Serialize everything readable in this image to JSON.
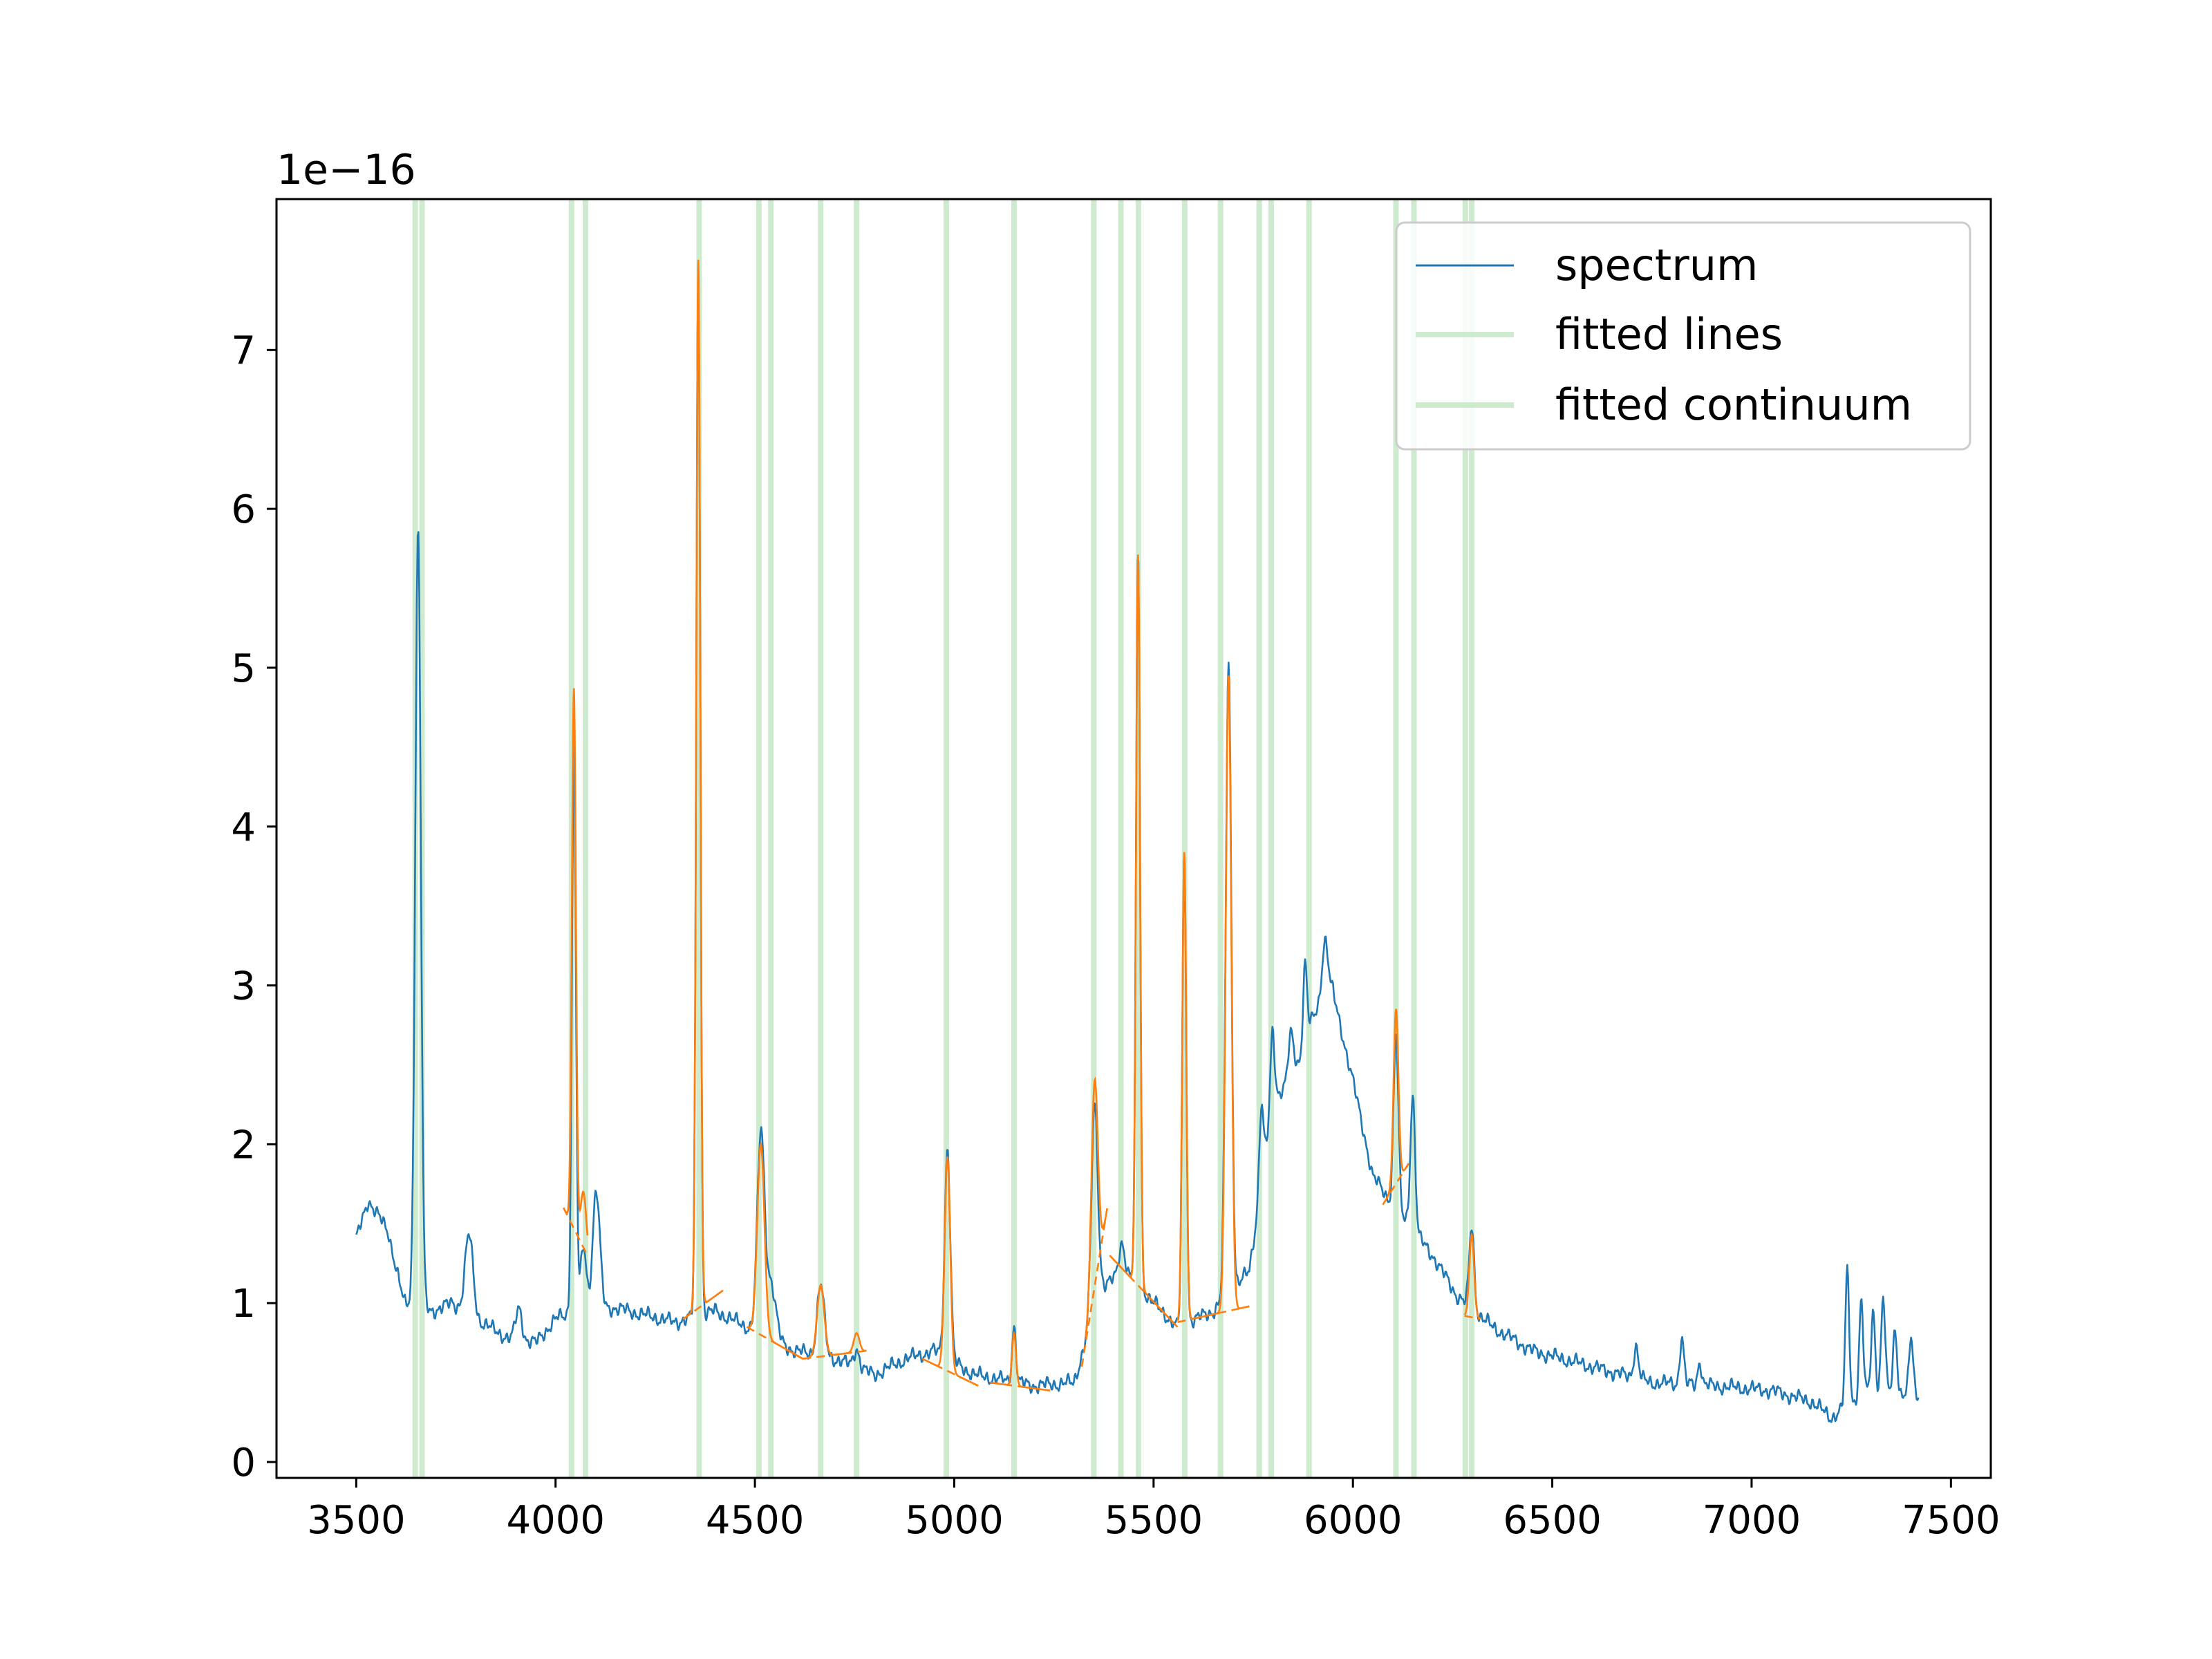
{
  "chart_data": {
    "type": "line",
    "title": "",
    "xlabel": "",
    "ylabel": "",
    "y_offset_label": "1e−16",
    "xlim": [
      3300,
      7600
    ],
    "ylim": [
      -0.1,
      7.95
    ],
    "x_ticks": [
      3500,
      4000,
      4500,
      5000,
      5500,
      6000,
      6500,
      7000,
      7500
    ],
    "y_ticks": [
      0,
      1,
      2,
      3,
      4,
      5,
      6,
      7
    ],
    "grid": false,
    "legend": {
      "position": "top-right",
      "entries": [
        "spectrum",
        "fitted lines",
        "fitted continuum"
      ]
    },
    "colors": {
      "spectrum": "#1f77b4",
      "fit": "#ff7f0e",
      "marker": "#a8dba8"
    },
    "marker_lines_x": [
      3648,
      3665,
      4040,
      4075,
      4360,
      4510,
      4540,
      4665,
      4755,
      4980,
      5150,
      5350,
      5418,
      5462,
      5578,
      5668,
      5765,
      5795,
      5890,
      6108,
      6153,
      6282,
      6298
    ],
    "spectrum_peaks": [
      {
        "x": 3655,
        "y": 4.9,
        "w": 7
      },
      {
        "x": 3783,
        "y": 0.5,
        "w": 10
      },
      {
        "x": 3908,
        "y": 0.2,
        "w": 8
      },
      {
        "x": 4046,
        "y": 3.55,
        "w": 5
      },
      {
        "x": 4070,
        "y": 0.4,
        "w": 7
      },
      {
        "x": 4102,
        "y": 0.75,
        "w": 9
      },
      {
        "x": 4358,
        "y": 6.65,
        "w": 5
      },
      {
        "x": 4515,
        "y": 1.25,
        "w": 9
      },
      {
        "x": 4540,
        "y": 0.35,
        "w": 12
      },
      {
        "x": 4665,
        "y": 0.45,
        "w": 9
      },
      {
        "x": 4755,
        "y": 0.12,
        "w": 7
      },
      {
        "x": 4983,
        "y": 1.33,
        "w": 7
      },
      {
        "x": 5150,
        "y": 0.35,
        "w": 5
      },
      {
        "x": 5352,
        "y": 1.3,
        "w": 8
      },
      {
        "x": 5420,
        "y": 0.2,
        "w": 7
      },
      {
        "x": 5461,
        "y": 4.65,
        "w": 5
      },
      {
        "x": 5577,
        "y": 2.95,
        "w": 5
      },
      {
        "x": 5688,
        "y": 4.0,
        "w": 7
      },
      {
        "x": 5770,
        "y": 0.5,
        "w": 5
      },
      {
        "x": 5798,
        "y": 0.45,
        "w": 5
      },
      {
        "x": 5845,
        "y": 0.3,
        "w": 7
      },
      {
        "x": 5880,
        "y": 0.5,
        "w": 5
      },
      {
        "x": 5930,
        "y": 0.4,
        "w": 8
      },
      {
        "x": 6108,
        "y": 1.1,
        "w": 6
      },
      {
        "x": 6150,
        "y": 0.85,
        "w": 6
      },
      {
        "x": 6298,
        "y": 0.52,
        "w": 6
      },
      {
        "x": 6710,
        "y": 0.2,
        "w": 6
      },
      {
        "x": 6825,
        "y": 0.3,
        "w": 5
      },
      {
        "x": 6870,
        "y": 0.15,
        "w": 5
      },
      {
        "x": 7240,
        "y": 0.85,
        "w": 5
      },
      {
        "x": 7275,
        "y": 0.6,
        "w": 5
      },
      {
        "x": 7305,
        "y": 0.5,
        "w": 5
      },
      {
        "x": 7330,
        "y": 0.6,
        "w": 5
      },
      {
        "x": 7360,
        "y": 0.4,
        "w": 5
      },
      {
        "x": 7400,
        "y": 0.35,
        "w": 5
      }
    ],
    "spectrum_continuum": [
      [
        3500,
        1.4
      ],
      [
        3530,
        1.65
      ],
      [
        3580,
        1.45
      ],
      [
        3620,
        1.0
      ],
      [
        3690,
        0.95
      ],
      [
        3740,
        1.0
      ],
      [
        3800,
        0.9
      ],
      [
        3880,
        0.78
      ],
      [
        3950,
        0.75
      ],
      [
        4000,
        0.9
      ],
      [
        4050,
        0.95
      ],
      [
        4150,
        0.97
      ],
      [
        4300,
        0.88
      ],
      [
        4400,
        0.95
      ],
      [
        4480,
        0.85
      ],
      [
        4600,
        0.7
      ],
      [
        4700,
        0.65
      ],
      [
        4800,
        0.55
      ],
      [
        4880,
        0.65
      ],
      [
        4950,
        0.7
      ],
      [
        5050,
        0.55
      ],
      [
        5200,
        0.48
      ],
      [
        5300,
        0.5
      ],
      [
        5370,
        1.1
      ],
      [
        5430,
        1.2
      ],
      [
        5500,
        1.0
      ],
      [
        5560,
        0.85
      ],
      [
        5650,
        0.95
      ],
      [
        5740,
        1.2
      ],
      [
        5800,
        2.3
      ],
      [
        5850,
        2.4
      ],
      [
        5900,
        2.8
      ],
      [
        5950,
        2.95
      ],
      [
        6000,
        2.4
      ],
      [
        6050,
        1.8
      ],
      [
        6090,
        1.65
      ],
      [
        6200,
        1.3
      ],
      [
        6260,
        1.05
      ],
      [
        6350,
        0.85
      ],
      [
        6450,
        0.7
      ],
      [
        6600,
        0.6
      ],
      [
        6750,
        0.5
      ],
      [
        6900,
        0.48
      ],
      [
        7050,
        0.45
      ],
      [
        7150,
        0.38
      ],
      [
        7200,
        0.28
      ],
      [
        7240,
        0.35
      ],
      [
        7300,
        0.45
      ],
      [
        7420,
        0.42
      ]
    ],
    "fitted_segments": [
      {
        "x_range": [
          4020,
          4080
        ],
        "peaks": [
          {
            "x": 4046,
            "y": 3.4,
            "w": 5
          },
          {
            "x": 4070,
            "y": 0.35,
            "w": 7
          }
        ],
        "continuum": [
          [
            4020,
            1.6
          ],
          [
            4080,
            1.3
          ]
        ]
      },
      {
        "x_range": [
          4320,
          4420
        ],
        "peaks": [
          {
            "x": 4358,
            "y": 6.6,
            "w": 5
          }
        ],
        "continuum": [
          [
            4320,
            0.9
          ],
          [
            4420,
            1.08
          ]
        ]
      },
      {
        "x_range": [
          4480,
          4620
        ],
        "peaks": [
          {
            "x": 4515,
            "y": 1.2,
            "w": 9
          }
        ],
        "continuum": [
          [
            4480,
            0.85
          ],
          [
            4620,
            0.65
          ]
        ]
      },
      {
        "x_range": [
          4620,
          4780
        ],
        "peaks": [
          {
            "x": 4665,
            "y": 0.45,
            "w": 9
          },
          {
            "x": 4755,
            "y": 0.12,
            "w": 7
          }
        ],
        "continuum": [
          [
            4620,
            0.65
          ],
          [
            4780,
            0.7
          ]
        ]
      },
      {
        "x_range": [
          4920,
          5060
        ],
        "peaks": [
          {
            "x": 4983,
            "y": 1.35,
            "w": 7
          }
        ],
        "continuum": [
          [
            4920,
            0.65
          ],
          [
            5060,
            0.48
          ]
        ]
      },
      {
        "x_range": [
          5090,
          5240
        ],
        "peaks": [
          {
            "x": 5150,
            "y": 0.33,
            "w": 5
          }
        ],
        "continuum": [
          [
            5090,
            0.5
          ],
          [
            5240,
            0.45
          ]
        ]
      },
      {
        "x_range": [
          5330,
          5380
        ],
        "peaks": [
          {
            "x": 5352,
            "y": 1.3,
            "w": 8
          }
        ],
        "continuum": [
          [
            5320,
            0.6
          ],
          [
            5385,
            1.62
          ]
        ]
      },
      {
        "x_range": [
          5390,
          5560
        ],
        "peaks": [
          {
            "x": 5461,
            "y": 4.6,
            "w": 5
          }
        ],
        "continuum": [
          [
            5390,
            1.3
          ],
          [
            5560,
            0.85
          ]
        ]
      },
      {
        "x_range": [
          5560,
          5740
        ],
        "peaks": [
          {
            "x": 5577,
            "y": 2.95,
            "w": 5
          },
          {
            "x": 5688,
            "y": 4.0,
            "w": 7
          }
        ],
        "continuum": [
          [
            5560,
            0.88
          ],
          [
            5740,
            0.98
          ]
        ]
      },
      {
        "x_range": [
          6080,
          6140
        ],
        "peaks": [
          {
            "x": 6108,
            "y": 1.1,
            "w": 6
          }
        ],
        "continuum": [
          [
            6075,
            1.62
          ],
          [
            6140,
            1.88
          ]
        ]
      },
      {
        "x_range": [
          6280,
          6320
        ],
        "peaks": [
          {
            "x": 6298,
            "y": 0.52,
            "w": 6
          }
        ],
        "continuum": [
          [
            6280,
            0.92
          ],
          [
            6320,
            0.9
          ]
        ]
      }
    ]
  }
}
